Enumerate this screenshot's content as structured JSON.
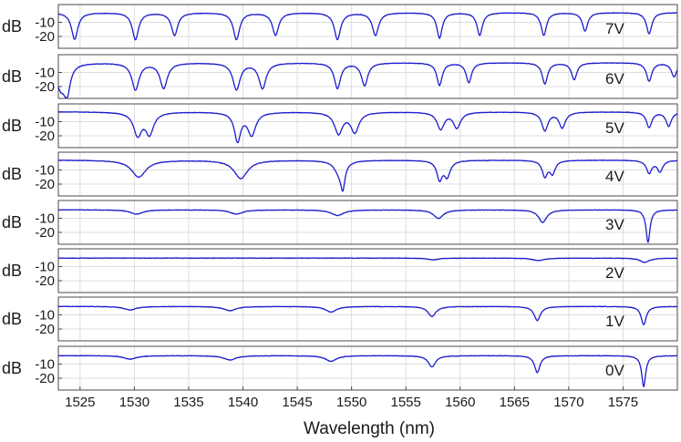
{
  "chart_data": {
    "type": "line",
    "xlabel": "Wavelength (nm)",
    "ylabel": "dB",
    "xlim": [
      1523,
      1580
    ],
    "xticks": [
      1525,
      1530,
      1535,
      1540,
      1545,
      1550,
      1555,
      1560,
      1565,
      1570,
      1575
    ],
    "ylim": [
      -28,
      0
    ],
    "yticks": [
      -10,
      -20
    ],
    "grid": true,
    "series": [
      {
        "name": "7V",
        "baseline": -3,
        "dips": [
          [
            1524.5,
            19,
            0.35
          ],
          [
            1530.1,
            19,
            0.35
          ],
          [
            1533.7,
            16,
            0.35
          ],
          [
            1539.4,
            19,
            0.35
          ],
          [
            1543.0,
            16,
            0.35
          ],
          [
            1548.7,
            19,
            0.35
          ],
          [
            1552.2,
            16,
            0.35
          ],
          [
            1558.1,
            18,
            0.3
          ],
          [
            1561.8,
            16,
            0.3
          ],
          [
            1567.7,
            16,
            0.3
          ],
          [
            1571.5,
            13,
            0.3
          ],
          [
            1577.4,
            15,
            0.3
          ]
        ]
      },
      {
        "name": "6V",
        "baseline": -3,
        "dips": [
          [
            1523.2,
            16,
            0.5
          ],
          [
            1523.8,
            19,
            0.35
          ],
          [
            1530.1,
            19,
            0.4
          ],
          [
            1532.7,
            18,
            0.4
          ],
          [
            1539.4,
            19,
            0.4
          ],
          [
            1541.8,
            18,
            0.4
          ],
          [
            1548.7,
            18,
            0.35
          ],
          [
            1551.2,
            16,
            0.35
          ],
          [
            1558.1,
            16,
            0.3
          ],
          [
            1560.8,
            14,
            0.3
          ],
          [
            1567.8,
            15,
            0.3
          ],
          [
            1570.5,
            12,
            0.3
          ],
          [
            1577.4,
            13,
            0.3
          ],
          [
            1579.7,
            10,
            0.3
          ]
        ]
      },
      {
        "name": "5V",
        "baseline": -3,
        "dips": [
          [
            1530.3,
            16,
            0.45
          ],
          [
            1531.4,
            15,
            0.45
          ],
          [
            1539.5,
            20,
            0.35
          ],
          [
            1540.8,
            16,
            0.45
          ],
          [
            1548.8,
            15,
            0.45
          ],
          [
            1550.3,
            14,
            0.45
          ],
          [
            1558.2,
            12,
            0.4
          ],
          [
            1559.7,
            11,
            0.4
          ],
          [
            1567.8,
            13,
            0.35
          ],
          [
            1569.4,
            11,
            0.35
          ],
          [
            1577.4,
            11,
            0.3
          ],
          [
            1579.2,
            10,
            0.3
          ]
        ]
      },
      {
        "name": "4V",
        "baseline": -3,
        "dips": [
          [
            1530.4,
            12,
            0.8
          ],
          [
            1539.8,
            13,
            0.75
          ],
          [
            1548.9,
            9,
            0.55
          ],
          [
            1549.2,
            15,
            0.22
          ],
          [
            1558.1,
            13,
            0.3
          ],
          [
            1558.8,
            11,
            0.35
          ],
          [
            1567.8,
            11,
            0.3
          ],
          [
            1568.5,
            9,
            0.3
          ],
          [
            1577.4,
            9,
            0.3
          ],
          [
            1578.4,
            8,
            0.3
          ]
        ]
      },
      {
        "name": "3V",
        "baseline": -4,
        "dips": [
          [
            1530.2,
            3,
            0.7
          ],
          [
            1539.4,
            3,
            0.7
          ],
          [
            1548.7,
            4,
            0.7
          ],
          [
            1558.0,
            6,
            0.55
          ],
          [
            1567.6,
            9,
            0.45
          ],
          [
            1577.3,
            23,
            0.22
          ]
        ]
      },
      {
        "name": "2V",
        "baseline": -4,
        "dips": [
          [
            1557.5,
            1.2,
            0.6
          ],
          [
            1567.2,
            1.8,
            0.6
          ],
          [
            1577.0,
            3,
            0.5
          ]
        ]
      },
      {
        "name": "1V",
        "baseline": -4,
        "dips": [
          [
            1529.6,
            2.5,
            0.7
          ],
          [
            1538.8,
            3,
            0.7
          ],
          [
            1548.1,
            4,
            0.6
          ],
          [
            1557.4,
            7,
            0.45
          ],
          [
            1567.1,
            10,
            0.35
          ],
          [
            1576.9,
            13,
            0.28
          ]
        ]
      },
      {
        "name": "0V",
        "baseline": -4,
        "dips": [
          [
            1529.6,
            2.5,
            0.7
          ],
          [
            1538.8,
            3,
            0.7
          ],
          [
            1548.1,
            4,
            0.6
          ],
          [
            1557.4,
            8,
            0.4
          ],
          [
            1567.1,
            12,
            0.3
          ],
          [
            1576.9,
            22,
            0.22
          ]
        ]
      }
    ]
  }
}
